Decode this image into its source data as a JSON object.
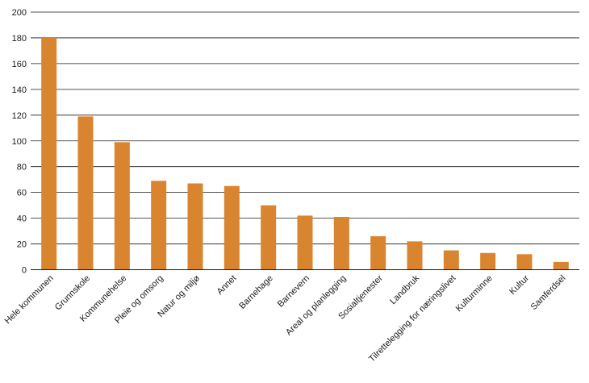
{
  "chart_data": {
    "type": "bar",
    "title": "",
    "xlabel": "",
    "ylabel": "",
    "ylim": [
      0,
      200
    ],
    "yticks": [
      0,
      20,
      40,
      60,
      80,
      100,
      120,
      140,
      160,
      180,
      200
    ],
    "grid": true,
    "bar_color": "#D9852F",
    "categories": [
      "Hele kommunen",
      "Grunnskole",
      "Kommunehelse",
      "Pleie og omsorg",
      "Natur og miljø",
      "Annet",
      "Barnehage",
      "Barnevern",
      "Areal og planlegging",
      "Sosialtjenester",
      "Landbruk",
      "Tilrettelegging for næringslivet",
      "Kulturminne",
      "Kultur",
      "Samferdsel"
    ],
    "values": [
      180,
      119,
      99,
      69,
      67,
      65,
      50,
      42,
      41,
      26,
      22,
      15,
      13,
      12,
      6
    ]
  }
}
